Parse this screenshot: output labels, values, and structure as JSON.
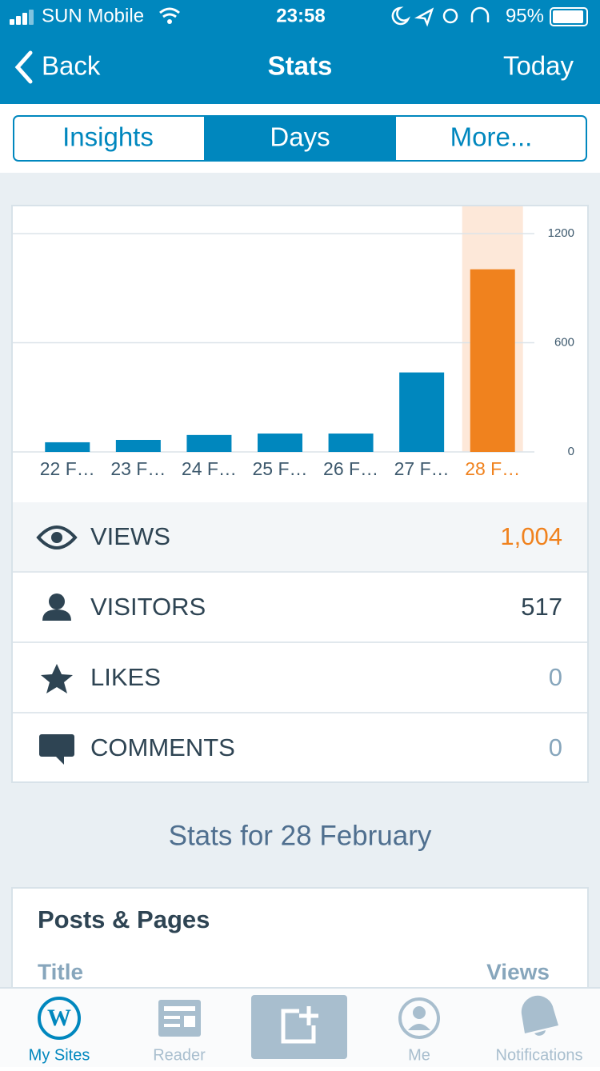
{
  "status_bar": {
    "carrier": "SUN Mobile",
    "time": "23:58",
    "battery": "95%"
  },
  "nav": {
    "back": "Back",
    "title": "Stats",
    "right": "Today"
  },
  "tabs": [
    "Insights",
    "Days",
    "More..."
  ],
  "chart_data": {
    "type": "bar",
    "categories": [
      "22 F…",
      "23 F…",
      "24 F…",
      "25 F…",
      "26 F…",
      "27 F…",
      "28 F…"
    ],
    "values": [
      53,
      66,
      93,
      101,
      101,
      437,
      1004
    ],
    "color": "#0087be",
    "colors": [
      "#0087be",
      "#0087be",
      "#0087be",
      "#0087be",
      "#0087be",
      "#0087be",
      "#f0821e"
    ],
    "highlight_color": "#fde8d9",
    "ylim": [
      0,
      1350
    ],
    "yticks": [
      0,
      600,
      1200
    ],
    "grid": true
  },
  "summary": [
    {
      "label": "VIEWS",
      "value": "1,004"
    },
    {
      "label": "VISITORS",
      "value": 517
    },
    {
      "label": "LIKES",
      "value": 0
    },
    {
      "label": "COMMENTS",
      "value": 0
    }
  ],
  "stats_heading": "Stats for 28 February",
  "posts": {
    "title": "Posts & Pages",
    "columns": [
      "Title",
      "Views"
    ]
  },
  "tab_bar": [
    "My Sites",
    "Reader",
    "Me",
    "Notifications"
  ]
}
